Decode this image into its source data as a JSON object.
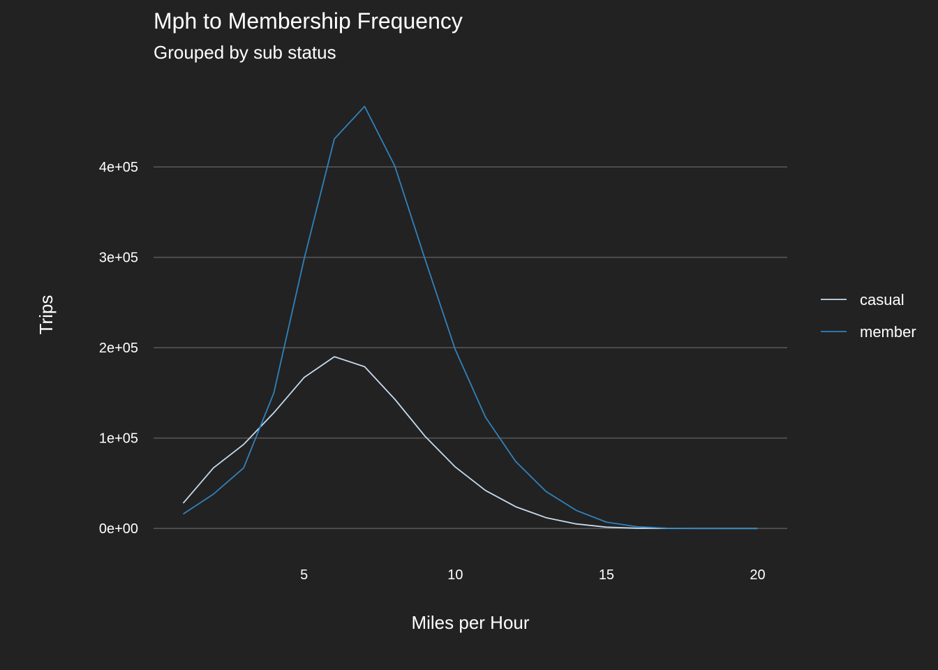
{
  "chart_data": {
    "type": "line",
    "title": "Mph to Membership Frequency",
    "subtitle": "Grouped by sub status",
    "xlabel": "Miles per Hour",
    "ylabel": "Trips",
    "xlim": [
      0.02,
      20.98
    ],
    "ylim": [
      -23000,
      492000
    ],
    "x_ticks": [
      5,
      10,
      15,
      20
    ],
    "x_tick_labels": [
      "5",
      "10",
      "15",
      "20"
    ],
    "y_ticks": [
      0,
      100000,
      200000,
      300000,
      400000
    ],
    "y_tick_labels": [
      "0e+00",
      "1e+05",
      "2e+05",
      "3e+05",
      "4e+05"
    ],
    "grid": "horizontal major",
    "legend_position": "right",
    "series": [
      {
        "name": "casual",
        "color": "#c6dbef",
        "x": [
          1,
          2,
          3,
          4,
          5,
          6,
          7,
          8,
          9,
          10,
          11,
          12,
          13,
          14,
          15,
          16,
          17,
          18,
          19,
          20
        ],
        "values": [
          28000,
          67000,
          93000,
          128000,
          167000,
          190000,
          179000,
          143000,
          102000,
          68000,
          42000,
          24000,
          12000,
          5000,
          1500,
          300,
          100,
          0,
          0,
          0
        ]
      },
      {
        "name": "member",
        "color": "#3182bd",
        "x": [
          1,
          2,
          3,
          4,
          5,
          6,
          7,
          8,
          9,
          10,
          11,
          12,
          13,
          14,
          15,
          16,
          17,
          18,
          19,
          20
        ],
        "values": [
          16000,
          38000,
          67000,
          150000,
          298000,
          431000,
          467000,
          401000,
          298000,
          198000,
          123000,
          74000,
          41000,
          20000,
          7000,
          2000,
          300,
          100,
          0,
          0
        ]
      }
    ]
  }
}
